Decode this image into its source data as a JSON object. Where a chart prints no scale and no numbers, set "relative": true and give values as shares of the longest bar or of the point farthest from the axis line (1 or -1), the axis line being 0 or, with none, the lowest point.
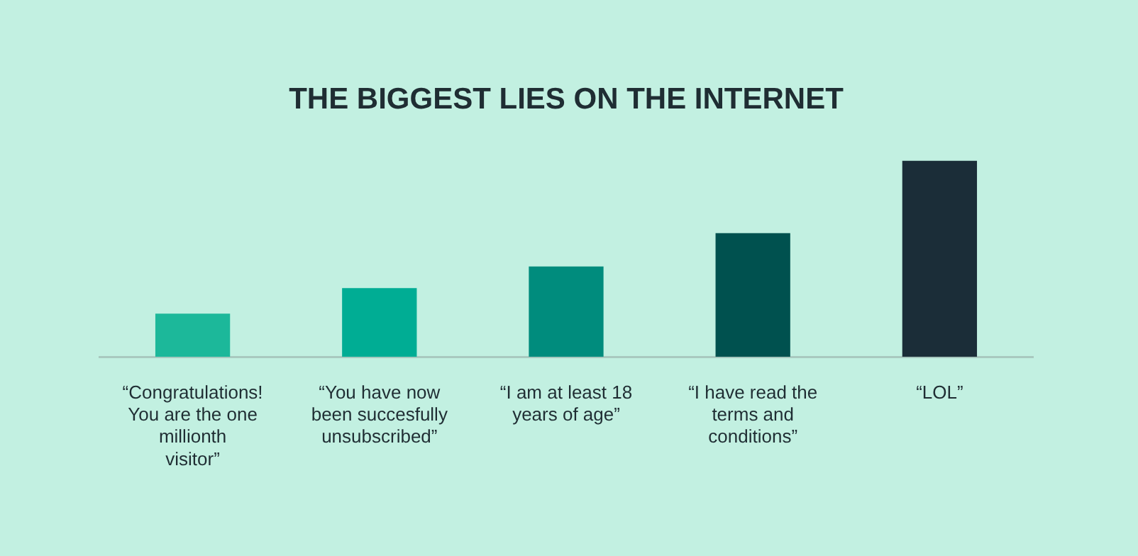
{
  "chart_data": {
    "type": "bar",
    "title": "THE BIGGEST LIES ON THE INTERNET",
    "relative": true,
    "categories": [
      "“Congratulations! You are the one millionth visitor”",
      "“You have now been succesfully unsubscribed”",
      "“I am at least 18 years of age”",
      "“I have read the terms and conditions”",
      "“LOL”"
    ],
    "values": [
      0.22,
      0.35,
      0.46,
      0.63,
      1
    ],
    "colors": [
      "#1cb89a",
      "#00ad94",
      "#008c7d",
      "#00514f",
      "#1b2d38"
    ]
  }
}
